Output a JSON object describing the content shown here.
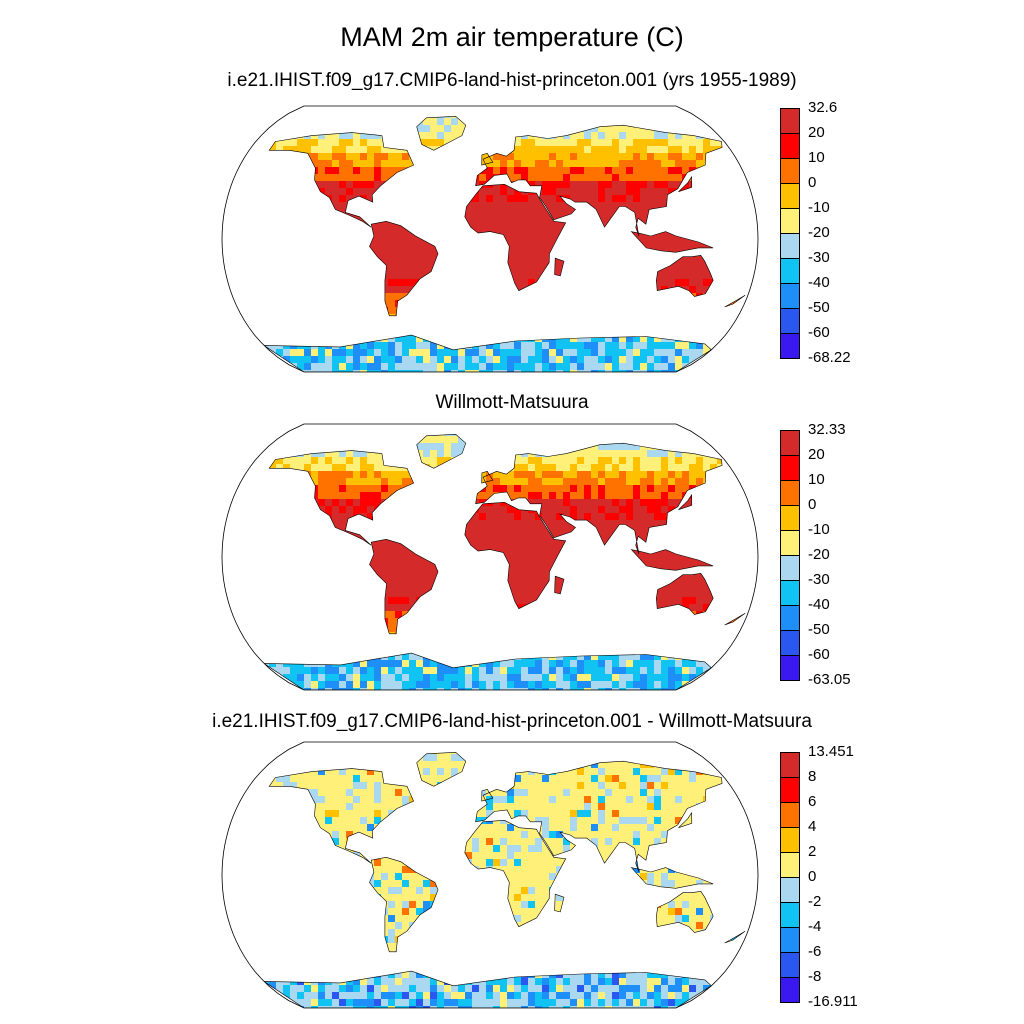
{
  "title": "MAM 2m air temperature (C)",
  "panels": [
    {
      "title": "i.e21.IHIST.f09_g17.CMIP6-land-hist-princeton.001 (yrs 1955-1989)",
      "kind": "temperature",
      "colorbar": {
        "labels": [
          "32.6",
          "20",
          "10",
          "0",
          "-10",
          "-20",
          "-30",
          "-40",
          "-50",
          "-60",
          "-68.22"
        ],
        "colors": [
          "#d42a2a",
          "#ff0000",
          "#ff7200",
          "#ffc000",
          "#fff07a",
          "#a9d8f0",
          "#11c3f2",
          "#1e8ff8",
          "#2a57f0",
          "#3a18f0"
        ]
      }
    },
    {
      "title": "Willmott-Matsuura",
      "kind": "temperature",
      "colorbar": {
        "labels": [
          "32.33",
          "20",
          "10",
          "0",
          "-10",
          "-20",
          "-30",
          "-40",
          "-50",
          "-60",
          "-63.05"
        ],
        "colors": [
          "#d42a2a",
          "#ff0000",
          "#ff7200",
          "#ffc000",
          "#fff07a",
          "#a9d8f0",
          "#11c3f2",
          "#1e8ff8",
          "#2a57f0",
          "#3a18f0"
        ]
      }
    },
    {
      "title": "i.e21.IHIST.f09_g17.CMIP6-land-hist-princeton.001 - Willmott-Matsuura",
      "kind": "difference",
      "colorbar": {
        "labels": [
          "13.451",
          "8",
          "6",
          "4",
          "2",
          "0",
          "-2",
          "-4",
          "-6",
          "-8",
          "-16.911"
        ],
        "colors": [
          "#d42a2a",
          "#ff0000",
          "#ff7200",
          "#ffc000",
          "#fff07a",
          "#a9d8f0",
          "#11c3f2",
          "#1e8ff8",
          "#2a57f0",
          "#3a18f0"
        ]
      }
    }
  ]
}
